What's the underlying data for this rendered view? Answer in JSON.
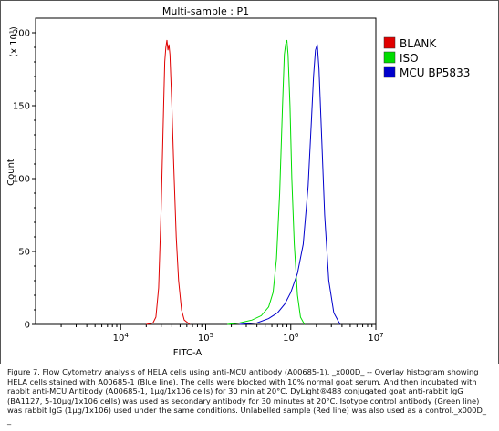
{
  "chart_data": {
    "type": "line",
    "title": "Multi-sample : P1",
    "xlabel": "FITC-A",
    "ylabel": "Count",
    "y_multiplier": "(x 10¹)",
    "x_scale": "log",
    "xlim": [
      1000,
      10000000
    ],
    "ylim": [
      0,
      210
    ],
    "x_ticks": [
      {
        "value": 10000,
        "base": "10",
        "exp": "4"
      },
      {
        "value": 100000,
        "base": "10",
        "exp": "5"
      },
      {
        "value": 1000000,
        "base": "10",
        "exp": "6"
      },
      {
        "value": 10000000,
        "base": "10",
        "exp": "7"
      }
    ],
    "y_ticks": [
      "0",
      "50",
      "100",
      "150",
      "200"
    ],
    "y_tick_values": [
      0,
      50,
      100,
      150,
      200
    ],
    "legend_position": "right",
    "series": [
      {
        "name": "BLANK",
        "color": "#e00000",
        "x": [
          20000,
          24000,
          26000,
          28000,
          30000,
          32000,
          33000,
          34000,
          35000,
          36000,
          37000,
          38000,
          40000,
          42000,
          45000,
          48000,
          52000,
          56000,
          65000
        ],
        "y": [
          0,
          1,
          5,
          25,
          80,
          150,
          180,
          190,
          195,
          188,
          192,
          185,
          150,
          110,
          60,
          30,
          10,
          3,
          0
        ]
      },
      {
        "name": "ISO",
        "color": "#00dd00",
        "x": [
          180000,
          250000,
          350000,
          450000,
          550000,
          620000,
          680000,
          740000,
          800000,
          840000,
          870000,
          900000,
          930000,
          980000,
          1030000,
          1100000,
          1200000,
          1300000,
          1450000
        ],
        "y": [
          0,
          1,
          3,
          6,
          12,
          22,
          45,
          90,
          150,
          185,
          192,
          195,
          185,
          150,
          100,
          55,
          20,
          5,
          0
        ]
      },
      {
        "name": "MCU BP5833",
        "color": "#0000cc",
        "x": [
          250000,
          400000,
          550000,
          700000,
          850000,
          1000000,
          1200000,
          1400000,
          1600000,
          1750000,
          1850000,
          1950000,
          2050000,
          2150000,
          2300000,
          2500000,
          2800000,
          3200000,
          3800000
        ],
        "y": [
          0,
          1,
          4,
          8,
          14,
          22,
          35,
          55,
          95,
          140,
          170,
          188,
          192,
          175,
          130,
          75,
          30,
          8,
          0
        ]
      }
    ]
  },
  "caption": "Figure 7. Flow Cytometry analysis of HELA cells using anti-MCU antibody (A00685-1). _x000D_ -- Overlay histogram showing HELA cells stained with A00685-1 (Blue line). The cells were blocked with 10% normal goat serum. And then incubated with rabbit anti-MCU Antibody (A00685-1, 1μg/1x106 cells) for 30 min at 20°C. DyLight®488 conjugated goat anti-rabbit IgG (BA1127, 5-10μg/1x106 cells) was used as secondary antibody for 30 minutes at 20°C. Isotype control antibody (Green line) was rabbit IgG (1μg/1x106) used under the same conditions. Unlabelled sample (Red line) was also used as a control._x000D_ _"
}
